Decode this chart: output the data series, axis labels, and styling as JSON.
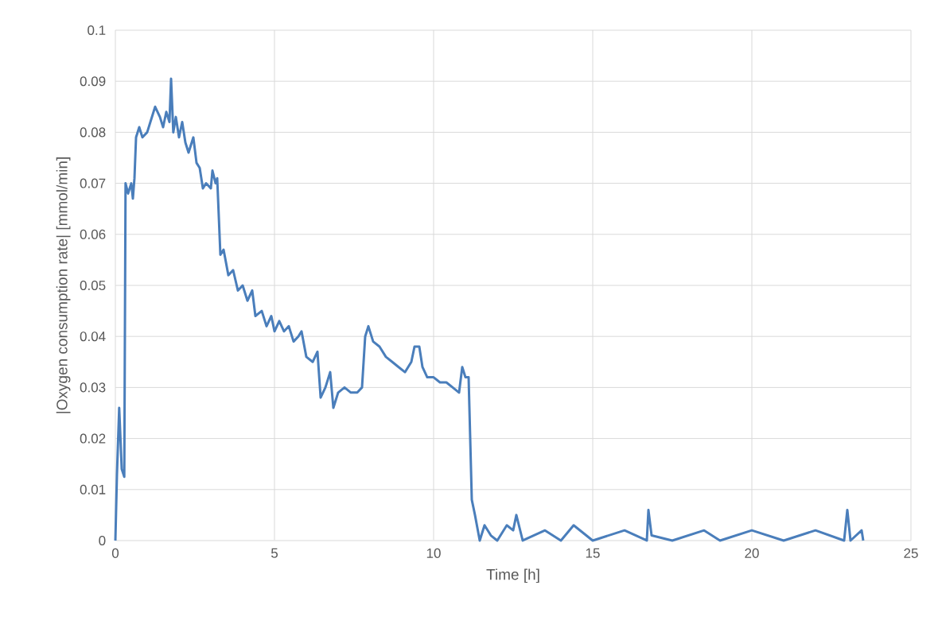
{
  "chart_data": {
    "type": "line",
    "xlabel": "Time [h]",
    "ylabel": "|Oxygen consumption rate| [mmol/min]",
    "xlim": [
      0,
      25
    ],
    "xticks": [
      0,
      5,
      10,
      15,
      20,
      25
    ],
    "ylim": [
      0,
      0.1
    ],
    "yticks": [
      0,
      0.01,
      0.02,
      0.03,
      0.04,
      0.05,
      0.06,
      0.07,
      0.08,
      0.09,
      0.1
    ],
    "grid": true,
    "marker": "none",
    "line_style": "solid",
    "color": "#4a7ebb",
    "x": [
      0,
      0.05,
      0.12,
      0.2,
      0.28,
      0.32,
      0.4,
      0.5,
      0.55,
      0.6,
      0.65,
      0.75,
      0.85,
      1.0,
      1.1,
      1.25,
      1.4,
      1.5,
      1.6,
      1.7,
      1.75,
      1.82,
      1.9,
      2.0,
      2.1,
      2.2,
      2.3,
      2.45,
      2.55,
      2.65,
      2.75,
      2.85,
      3.0,
      3.05,
      3.15,
      3.2,
      3.3,
      3.4,
      3.55,
      3.7,
      3.85,
      4.0,
      4.15,
      4.3,
      4.4,
      4.6,
      4.75,
      4.9,
      5.0,
      5.15,
      5.3,
      5.45,
      5.6,
      5.75,
      5.85,
      6.0,
      6.2,
      6.35,
      6.45,
      6.6,
      6.75,
      6.85,
      7.0,
      7.2,
      7.4,
      7.6,
      7.75,
      7.85,
      7.95,
      8.1,
      8.3,
      8.5,
      8.7,
      8.9,
      9.1,
      9.3,
      9.4,
      9.55,
      9.65,
      9.8,
      10.0,
      10.2,
      10.4,
      10.6,
      10.8,
      10.9,
      11.0,
      11.1,
      11.2,
      11.3,
      11.45,
      11.6,
      11.8,
      12.0,
      12.3,
      12.5,
      12.6,
      12.8,
      13.5,
      14.0,
      14.4,
      15.0,
      16.0,
      16.7,
      16.75,
      16.85,
      17.5,
      18.5,
      19.0,
      20.0,
      21.0,
      22.0,
      22.9,
      23.0,
      23.1,
      23.45,
      23.5
    ],
    "values": [
      0,
      0.013,
      0.026,
      0.014,
      0.0125,
      0.07,
      0.068,
      0.07,
      0.067,
      0.071,
      0.079,
      0.081,
      0.079,
      0.08,
      0.082,
      0.085,
      0.083,
      0.081,
      0.084,
      0.082,
      0.0905,
      0.08,
      0.083,
      0.079,
      0.082,
      0.078,
      0.076,
      0.079,
      0.074,
      0.073,
      0.069,
      0.07,
      0.069,
      0.0725,
      0.07,
      0.071,
      0.056,
      0.057,
      0.052,
      0.053,
      0.049,
      0.05,
      0.047,
      0.049,
      0.044,
      0.045,
      0.042,
      0.044,
      0.041,
      0.043,
      0.041,
      0.042,
      0.039,
      0.04,
      0.041,
      0.036,
      0.035,
      0.037,
      0.028,
      0.03,
      0.033,
      0.026,
      0.029,
      0.03,
      0.029,
      0.029,
      0.03,
      0.04,
      0.042,
      0.039,
      0.038,
      0.036,
      0.035,
      0.034,
      0.033,
      0.035,
      0.038,
      0.038,
      0.034,
      0.032,
      0.032,
      0.031,
      0.031,
      0.03,
      0.029,
      0.034,
      0.032,
      0.032,
      0.008,
      0.005,
      0,
      0.003,
      0.001,
      0,
      0.003,
      0.002,
      0.005,
      0,
      0.002,
      0,
      0.003,
      0,
      0.002,
      0,
      0.006,
      0.001,
      0,
      0.002,
      0,
      0.002,
      0,
      0.002,
      0,
      0.006,
      0,
      0.002,
      0
    ]
  }
}
